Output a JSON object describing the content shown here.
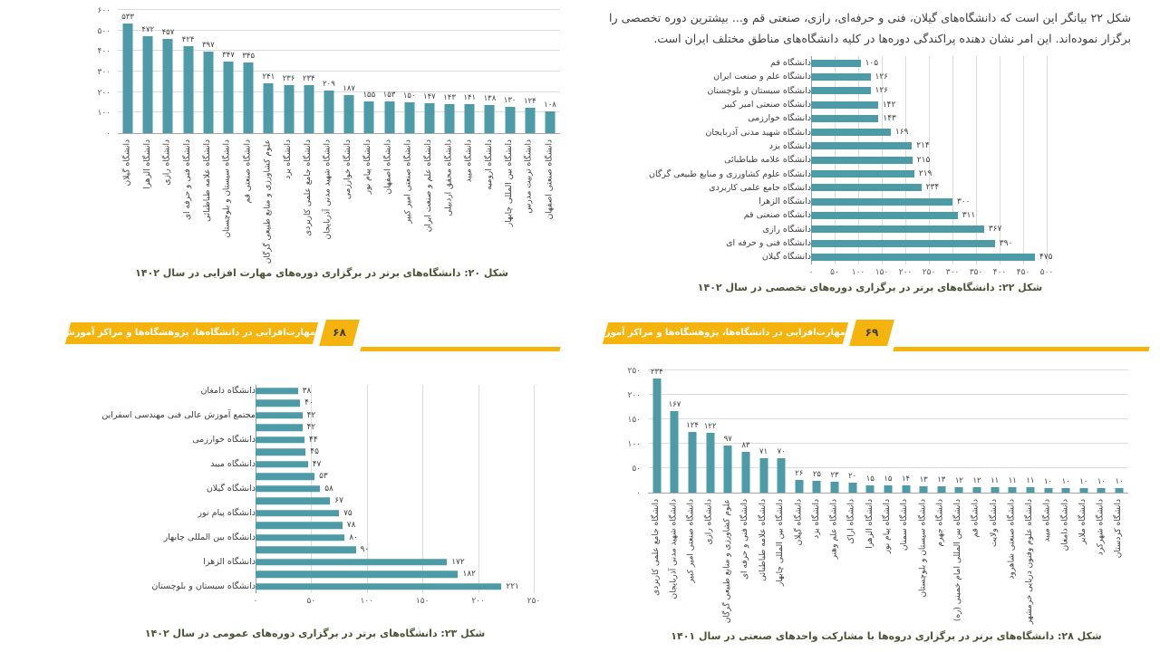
{
  "colors": {
    "bar": "#4e9ba8",
    "banner_orange": "#f5b30d",
    "caption_text": "#4b5436",
    "grid": "#dcdcdc"
  },
  "paragraph": "شکل ۲۲ بیانگر این است که دانشگاه‌های گیلان، فنی و حرفه‌ای، رازی، صنعتی قم و... بیشترین دوره تخصصی را برگزار نموده‌اند. این امر نشان دهنده پراکندگی دوره‌ها در کلیه دانشگاه‌های مناطق مختلف ایران است.",
  "banners": {
    "left": {
      "page_number": "۶۸",
      "title": "مهارت‌افزایی در دانشگاه‌ها، پژوهشگاه‌ها و مراکز آموزش عالی کشور"
    },
    "right": {
      "page_number": "۶۹",
      "title": "مهارت‌افزایی در دانشگاه‌ها، پژوهشگاه‌ها و مراکز آموزش عالی کشور"
    }
  },
  "chart_data": [
    {
      "id": "figure20",
      "type": "bar",
      "orientation": "vertical",
      "caption": "شکل ۲۰: دانشگاه‌های برتر در برگزاری دوره‌های مهارت افزایی در سال ۱۴۰۲",
      "categories": [
        "دانشگاه گیلان",
        "دانشگاه الزهرا",
        "دانشگاه رازی",
        "دانشگاه فنی و حرفه ای",
        "دانشگاه علامه طباطبائی",
        "دانشگاه سیستان و بلوچستان",
        "دانشگاه صنعتی قم",
        "علوم کشاورزی و منابع طبیعی گرگان",
        "دانشگاه یزد",
        "دانشگاه جامع علمی کاربردی",
        "دانشگاه شهید مدنی آذربایجان",
        "دانشگاه خوارزمی",
        "دانشگاه پیام نور",
        "دانشگاه اصفهان",
        "دانشگاه صنعتی امیر کبیر",
        "دانشگاه علم و صنعت ایران",
        "دانشگاه محقق اردبیلی",
        "دانشگاه میبد",
        "دانشگاه ارومیه",
        "دانشگاه بین المللی چابهار",
        "دانشگاه تربیت مدرس",
        "دانشگاه صنعتی اصفهان"
      ],
      "values": [
        533,
        472,
        457,
        424,
        397,
        347,
        345,
        241,
        236,
        234,
        209,
        187,
        155,
        153,
        150,
        147,
        143,
        141,
        138,
        130,
        124,
        108
      ],
      "value_labels": [
        "۵۳۳",
        "۴۷۲",
        "۴۵۷",
        "۴۲۴",
        "۳۹۷",
        "۳۴۷",
        "۳۴۵",
        "۲۴۱",
        "۲۳۶",
        "۲۳۴",
        "۲۰۹",
        "۱۸۷",
        "۱۵۵",
        "۱۵۳",
        "۱۵۰",
        "۱۴۷",
        "۱۴۳",
        "۱۴۱",
        "۱۳۸",
        "۱۳۰",
        "۱۲۴",
        "۱۰۸"
      ],
      "ylim": [
        0,
        600
      ],
      "axis_max": 600,
      "axis_tick_values": [
        0,
        100,
        200,
        300,
        400,
        500,
        600
      ],
      "axis_ticks": [
        "۰",
        "۱۰۰",
        "۲۰۰",
        "۳۰۰",
        "۴۰۰",
        "۵۰۰",
        "۶۰۰"
      ],
      "grid": true
    },
    {
      "id": "figure22",
      "type": "bar",
      "orientation": "horizontal",
      "caption": "شکل ۲۲: دانشگاه‌های برتر در برگزاری دوره‌های  تخصصی در سال ۱۴۰۲",
      "categories": [
        "دانشگاه قم",
        "دانشگاه علم و صنعت ایران",
        "دانشگاه سیستان و بلوچستان",
        "دانشگاه صنعتی امیر کبیر",
        "دانشگاه خوارزمی",
        "دانشگاه شهید مدنی آذربایجان",
        "دانشگاه یزد",
        "دانشگاه علامه طباطبائی",
        "دانشگاه علوم کشاورزی و منابع طبیعی گرگان",
        "دانشگاه جامع علمی کاربردی",
        "دانشگاه الزهرا",
        "دانشگاه صنعتی قم",
        "دانشگاه رازی",
        "دانشگاه فنی و حرفه ای",
        "دانشگاه گیلان"
      ],
      "values": [
        105,
        126,
        126,
        142,
        143,
        169,
        214,
        215,
        219,
        234,
        300,
        311,
        367,
        390,
        475
      ],
      "value_labels": [
        "۱۰۵",
        "۱۲۶",
        "۱۲۶",
        "۱۴۲",
        "۱۴۳",
        "۱۶۹",
        "۲۱۴",
        "۲۱۵",
        "۲۱۹",
        "۲۳۴",
        "۳۰۰",
        "۳۱۱",
        "۳۶۷",
        "۳۹۰",
        "۴۷۵"
      ],
      "xlim": [
        0,
        500
      ],
      "axis_max": 500,
      "axis_tick_values": [
        0,
        50,
        100,
        150,
        200,
        250,
        300,
        350,
        400,
        450,
        500
      ],
      "axis_ticks": [
        "۰",
        "۵۰",
        "۱۰۰",
        "۱۵۰",
        "۲۰۰",
        "۲۵۰",
        "۳۰۰",
        "۳۵۰",
        "۴۰۰",
        "۴۵۰",
        "۵۰۰"
      ],
      "grid": true
    },
    {
      "id": "figure23",
      "type": "bar",
      "orientation": "horizontal",
      "caption": "شکل ۲۳: دانشگاه‌های برتر در برگزاری دوره‌های عمومی در سال ۱۴۰۲",
      "categories": [
        "دانشگاه دامغان",
        "",
        "مجتمع آموزش عالی فنی مهندسی اسفراین",
        "",
        "دانشگاه خوارزمی",
        "",
        "دانشگاه میبد",
        "",
        "دانشگاه گیلان",
        "",
        "دانشگاه پیام نور",
        "",
        "دانشگاه بین المللی چابهار",
        "",
        "دانشگاه الزهرا",
        "",
        "دانشگاه سیستان و بلوچستان"
      ],
      "values": [
        38,
        40,
        42,
        42,
        44,
        45,
        47,
        53,
        58,
        67,
        75,
        78,
        80,
        90,
        172,
        182,
        221
      ],
      "value_labels": [
        "۳۸",
        "۴۰",
        "۴۲",
        "۴۲",
        "۴۴",
        "۴۵",
        "۴۷",
        "۵۳",
        "۵۸",
        "۶۷",
        "۷۵",
        "۷۸",
        "۸۰",
        "۹۰",
        "۱۷۲",
        "۱۸۲",
        "۲۲۱"
      ],
      "xlim": [
        0,
        250
      ],
      "axis_max": 250,
      "axis_tick_values": [
        0,
        50,
        100,
        150,
        200,
        250
      ],
      "axis_ticks": [
        "۰",
        "۵۰",
        "۱۰۰",
        "۱۵۰",
        "۲۰۰",
        "۲۵۰"
      ],
      "grid": true
    },
    {
      "id": "figure28",
      "type": "bar",
      "orientation": "vertical",
      "caption": "شکل ۲۸: دانشگاه‌های برتر در برگزاری دروه‌ها با مشارکت واحدهای صنعتی در سال ۱۴۰۱",
      "categories": [
        "دانشگاه جامع علمی کاربردی",
        "دانشگاه شهید مدنی آذربایجان",
        "دانشگاه صنعتی امیر کبیر",
        "دانشگاه رازی",
        "علوم کشاورزی و منابع طبیعی گرگان",
        "دانشگاه فنی و حرفه ای",
        "دانشگاه علامه طباطبائی",
        "دانشگاه بین المللی چابهار",
        "دانشگاه گیلان",
        "دانشگاه یزد",
        "دانشگاه علم وهنر",
        "دانشگاه اراک",
        "دانشگاه الزهرا",
        "دانشگاه پیام نور",
        "دانشگاه سمنان",
        "دانشگاه سیستان و بلوچستان",
        "دانشگاه جهرم",
        "دانشگاه بین المللی امام خمینی (ره)",
        "دانشگاه قم",
        "دانشگاه ولایت",
        "دانشگاه صنعتی شاهرود",
        "دانشگاه علوم وفنون دریایی خرمشهر",
        "دانشگاه میبد",
        "دانشگاه دامغان",
        "دانشگاه ملایر",
        "دانشگاه شهرکرد",
        "دانشگاه کردستان"
      ],
      "values": [
        234,
        167,
        124,
        122,
        97,
        83,
        71,
        70,
        26,
        25,
        23,
        20,
        15,
        15,
        14,
        13,
        13,
        12,
        12,
        11,
        11,
        11,
        10,
        10,
        10,
        10,
        10
      ],
      "value_labels": [
        "۲۳۴",
        "۱۶۷",
        "۱۲۴",
        "۱۲۲",
        "۹۷",
        "۸۳",
        "۷۱",
        "۷۰",
        "۲۶",
        "۲۵",
        "۲۳",
        "۲۰",
        "۱۵",
        "۱۵",
        "۱۴",
        "۱۳",
        "۱۳",
        "۱۲",
        "۱۲",
        "۱۱",
        "۱۱",
        "۱۱",
        "۱۰",
        "۱۰",
        "۱۰",
        "۱۰",
        "۱۰"
      ],
      "ylim": [
        0,
        250
      ],
      "axis_max": 250,
      "axis_tick_values": [
        0,
        50,
        100,
        150,
        200,
        250
      ],
      "axis_ticks": [
        "۰",
        "۵۰",
        "۱۰۰",
        "۱۵۰",
        "۲۰۰",
        "۲۵۰"
      ],
      "grid": true
    }
  ]
}
